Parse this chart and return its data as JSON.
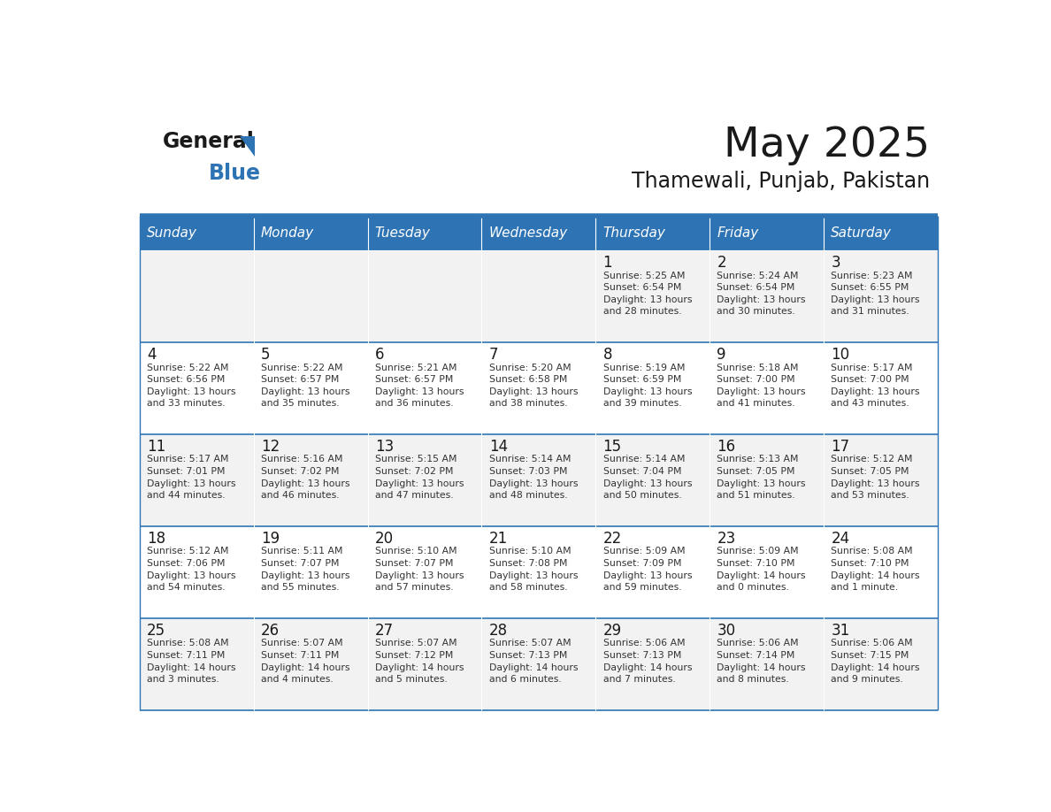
{
  "title": "May 2025",
  "subtitle": "Thamewali, Punjab, Pakistan",
  "header_bg": "#2E74B5",
  "header_text": "#FFFFFF",
  "row_bg_light": "#FFFFFF",
  "row_bg_dark": "#F2F2F2",
  "cell_border": "#2E74B5",
  "day_names": [
    "Sunday",
    "Monday",
    "Tuesday",
    "Wednesday",
    "Thursday",
    "Friday",
    "Saturday"
  ],
  "weeks": [
    [
      {
        "day": "",
        "info": ""
      },
      {
        "day": "",
        "info": ""
      },
      {
        "day": "",
        "info": ""
      },
      {
        "day": "",
        "info": ""
      },
      {
        "day": "1",
        "info": "Sunrise: 5:25 AM\nSunset: 6:54 PM\nDaylight: 13 hours\nand 28 minutes."
      },
      {
        "day": "2",
        "info": "Sunrise: 5:24 AM\nSunset: 6:54 PM\nDaylight: 13 hours\nand 30 minutes."
      },
      {
        "day": "3",
        "info": "Sunrise: 5:23 AM\nSunset: 6:55 PM\nDaylight: 13 hours\nand 31 minutes."
      }
    ],
    [
      {
        "day": "4",
        "info": "Sunrise: 5:22 AM\nSunset: 6:56 PM\nDaylight: 13 hours\nand 33 minutes."
      },
      {
        "day": "5",
        "info": "Sunrise: 5:22 AM\nSunset: 6:57 PM\nDaylight: 13 hours\nand 35 minutes."
      },
      {
        "day": "6",
        "info": "Sunrise: 5:21 AM\nSunset: 6:57 PM\nDaylight: 13 hours\nand 36 minutes."
      },
      {
        "day": "7",
        "info": "Sunrise: 5:20 AM\nSunset: 6:58 PM\nDaylight: 13 hours\nand 38 minutes."
      },
      {
        "day": "8",
        "info": "Sunrise: 5:19 AM\nSunset: 6:59 PM\nDaylight: 13 hours\nand 39 minutes."
      },
      {
        "day": "9",
        "info": "Sunrise: 5:18 AM\nSunset: 7:00 PM\nDaylight: 13 hours\nand 41 minutes."
      },
      {
        "day": "10",
        "info": "Sunrise: 5:17 AM\nSunset: 7:00 PM\nDaylight: 13 hours\nand 43 minutes."
      }
    ],
    [
      {
        "day": "11",
        "info": "Sunrise: 5:17 AM\nSunset: 7:01 PM\nDaylight: 13 hours\nand 44 minutes."
      },
      {
        "day": "12",
        "info": "Sunrise: 5:16 AM\nSunset: 7:02 PM\nDaylight: 13 hours\nand 46 minutes."
      },
      {
        "day": "13",
        "info": "Sunrise: 5:15 AM\nSunset: 7:02 PM\nDaylight: 13 hours\nand 47 minutes."
      },
      {
        "day": "14",
        "info": "Sunrise: 5:14 AM\nSunset: 7:03 PM\nDaylight: 13 hours\nand 48 minutes."
      },
      {
        "day": "15",
        "info": "Sunrise: 5:14 AM\nSunset: 7:04 PM\nDaylight: 13 hours\nand 50 minutes."
      },
      {
        "day": "16",
        "info": "Sunrise: 5:13 AM\nSunset: 7:05 PM\nDaylight: 13 hours\nand 51 minutes."
      },
      {
        "day": "17",
        "info": "Sunrise: 5:12 AM\nSunset: 7:05 PM\nDaylight: 13 hours\nand 53 minutes."
      }
    ],
    [
      {
        "day": "18",
        "info": "Sunrise: 5:12 AM\nSunset: 7:06 PM\nDaylight: 13 hours\nand 54 minutes."
      },
      {
        "day": "19",
        "info": "Sunrise: 5:11 AM\nSunset: 7:07 PM\nDaylight: 13 hours\nand 55 minutes."
      },
      {
        "day": "20",
        "info": "Sunrise: 5:10 AM\nSunset: 7:07 PM\nDaylight: 13 hours\nand 57 minutes."
      },
      {
        "day": "21",
        "info": "Sunrise: 5:10 AM\nSunset: 7:08 PM\nDaylight: 13 hours\nand 58 minutes."
      },
      {
        "day": "22",
        "info": "Sunrise: 5:09 AM\nSunset: 7:09 PM\nDaylight: 13 hours\nand 59 minutes."
      },
      {
        "day": "23",
        "info": "Sunrise: 5:09 AM\nSunset: 7:10 PM\nDaylight: 14 hours\nand 0 minutes."
      },
      {
        "day": "24",
        "info": "Sunrise: 5:08 AM\nSunset: 7:10 PM\nDaylight: 14 hours\nand 1 minute."
      }
    ],
    [
      {
        "day": "25",
        "info": "Sunrise: 5:08 AM\nSunset: 7:11 PM\nDaylight: 14 hours\nand 3 minutes."
      },
      {
        "day": "26",
        "info": "Sunrise: 5:07 AM\nSunset: 7:11 PM\nDaylight: 14 hours\nand 4 minutes."
      },
      {
        "day": "27",
        "info": "Sunrise: 5:07 AM\nSunset: 7:12 PM\nDaylight: 14 hours\nand 5 minutes."
      },
      {
        "day": "28",
        "info": "Sunrise: 5:07 AM\nSunset: 7:13 PM\nDaylight: 14 hours\nand 6 minutes."
      },
      {
        "day": "29",
        "info": "Sunrise: 5:06 AM\nSunset: 7:13 PM\nDaylight: 14 hours\nand 7 minutes."
      },
      {
        "day": "30",
        "info": "Sunrise: 5:06 AM\nSunset: 7:14 PM\nDaylight: 14 hours\nand 8 minutes."
      },
      {
        "day": "31",
        "info": "Sunrise: 5:06 AM\nSunset: 7:15 PM\nDaylight: 14 hours\nand 9 minutes."
      }
    ]
  ]
}
